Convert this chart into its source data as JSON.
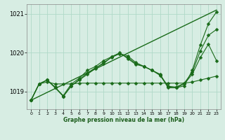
{
  "xlabel": "Graphe pression niveau de la mer (hPa)",
  "xlim": [
    -0.5,
    23.5
  ],
  "ylim": [
    1018.55,
    1021.25
  ],
  "yticks": [
    1019,
    1020,
    1021
  ],
  "xticks": [
    0,
    1,
    2,
    3,
    4,
    5,
    6,
    7,
    8,
    9,
    10,
    11,
    12,
    13,
    14,
    15,
    16,
    17,
    18,
    19,
    20,
    21,
    22,
    23
  ],
  "background_color": "#d7ede3",
  "grid_color": "#b0d9c8",
  "line_color": "#1a6b1a",
  "lines": [
    {
      "x": [
        0,
        23
      ],
      "y": [
        1018.78,
        1021.1
      ],
      "marker": null,
      "markersize": 0,
      "linewidth": 1.0
    },
    {
      "x": [
        0,
        1,
        2,
        3,
        4,
        5,
        6,
        7,
        8,
        9,
        10,
        11,
        12,
        13,
        14,
        15,
        16,
        17,
        18,
        19,
        20,
        21,
        22,
        23
      ],
      "y": [
        1018.78,
        1019.2,
        1019.25,
        1019.2,
        1019.2,
        1019.2,
        1019.22,
        1019.22,
        1019.22,
        1019.22,
        1019.22,
        1019.22,
        1019.22,
        1019.22,
        1019.22,
        1019.22,
        1019.22,
        1019.22,
        1019.22,
        1019.22,
        1019.25,
        1019.3,
        1019.35,
        1019.4
      ],
      "marker": "D",
      "markersize": 2.5,
      "linewidth": 0.8
    },
    {
      "x": [
        0,
        1,
        2,
        3,
        4,
        5,
        6,
        7,
        8,
        9,
        10,
        11,
        12,
        13,
        14,
        15,
        16,
        17,
        18,
        19,
        20,
        21,
        22,
        23
      ],
      "y": [
        1018.78,
        1019.2,
        1019.3,
        1019.1,
        1018.9,
        1019.2,
        1019.35,
        1019.55,
        1019.65,
        1019.8,
        1019.9,
        1020.0,
        1019.85,
        1019.7,
        1019.65,
        1019.55,
        1019.45,
        1019.1,
        1019.1,
        1019.15,
        1019.55,
        1020.2,
        1020.75,
        1021.05
      ],
      "marker": "D",
      "markersize": 2.5,
      "linewidth": 0.8
    },
    {
      "x": [
        0,
        1,
        2,
        3,
        4,
        5,
        6,
        7,
        8,
        9,
        10,
        11,
        12,
        13,
        14,
        15,
        16,
        17,
        18,
        19,
        20,
        21,
        22,
        23
      ],
      "y": [
        1018.78,
        1019.2,
        1019.3,
        1019.1,
        1018.88,
        1019.15,
        1019.3,
        1019.45,
        1019.6,
        1019.75,
        1019.88,
        1019.98,
        1019.88,
        1019.72,
        1019.65,
        1019.55,
        1019.42,
        1019.12,
        1019.1,
        1019.2,
        1019.45,
        1019.88,
        1020.22,
        1019.8
      ],
      "marker": "D",
      "markersize": 2.5,
      "linewidth": 0.8
    },
    {
      "x": [
        0,
        1,
        2,
        3,
        4,
        5,
        6,
        7,
        8,
        9,
        10,
        11,
        12,
        13,
        14,
        15,
        16,
        17,
        18,
        19,
        20,
        21,
        22,
        23
      ],
      "y": [
        1018.78,
        1019.2,
        1019.3,
        1019.12,
        1018.88,
        1019.15,
        1019.32,
        1019.48,
        1019.62,
        1019.72,
        1019.9,
        1019.98,
        1019.92,
        1019.75,
        1019.65,
        1019.55,
        1019.44,
        1019.14,
        1019.12,
        1019.22,
        1019.5,
        1020.05,
        1020.45,
        1020.6
      ],
      "marker": "D",
      "markersize": 2.5,
      "linewidth": 0.8
    }
  ]
}
